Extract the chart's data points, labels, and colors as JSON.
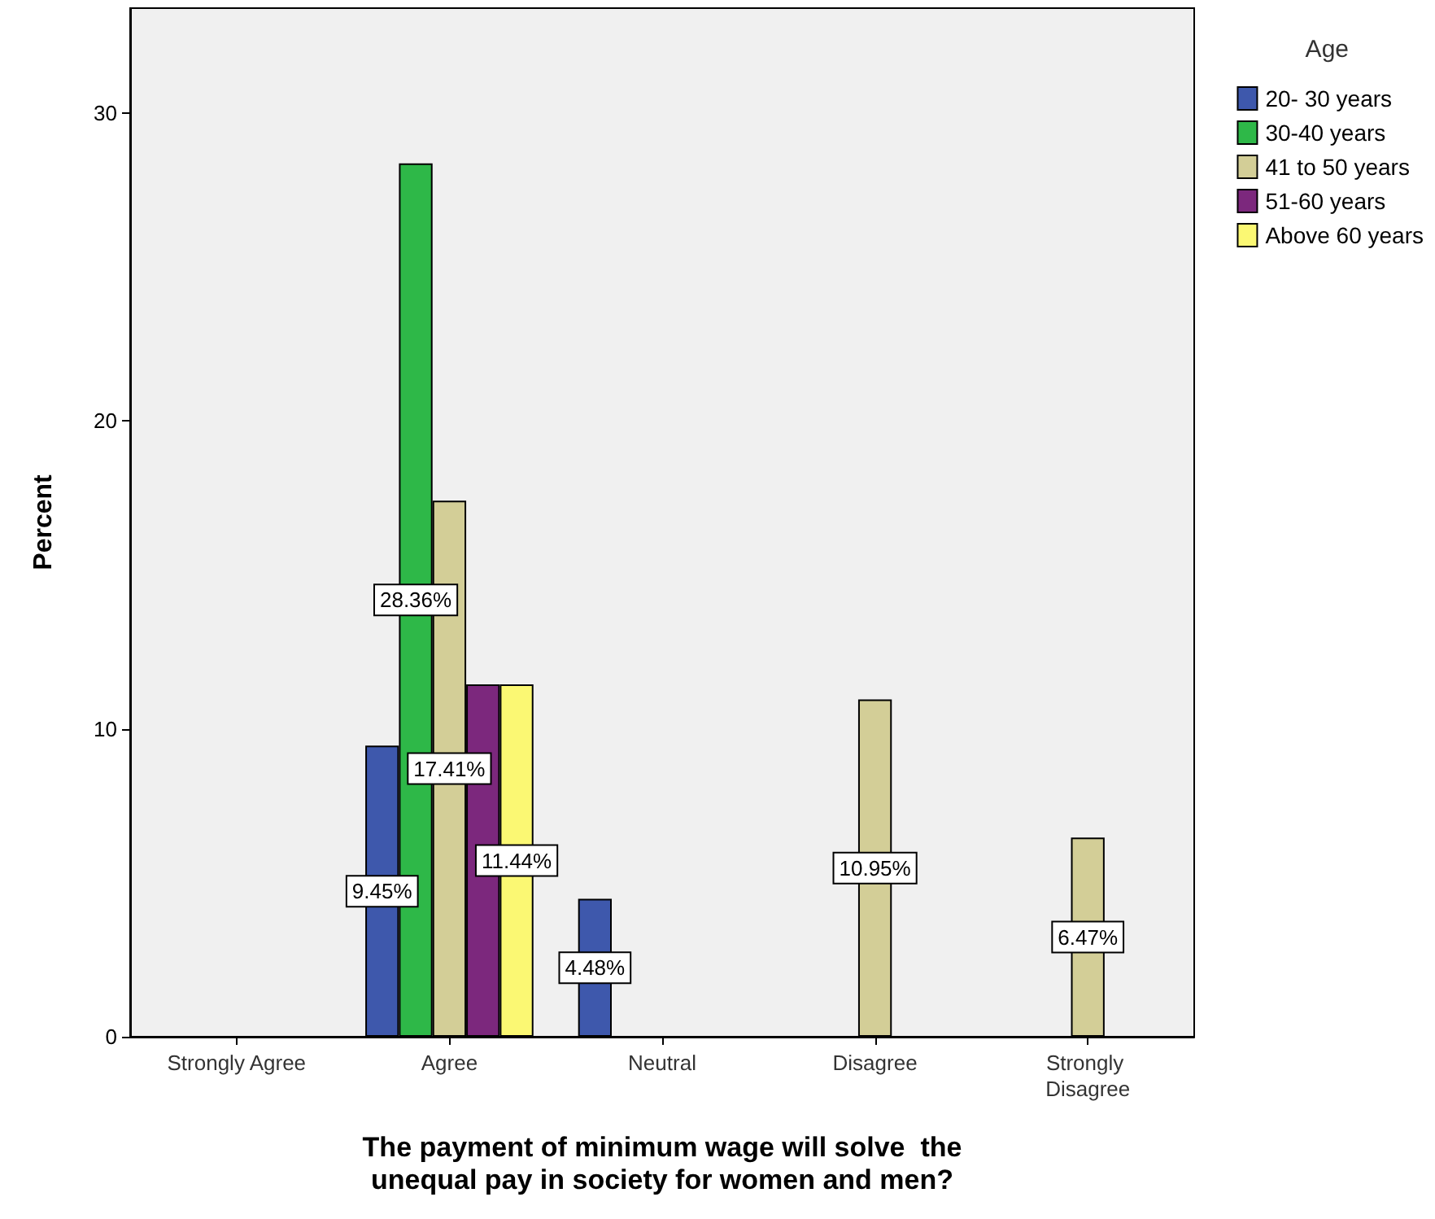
{
  "chart_data": {
    "type": "bar",
    "xlabel": "The payment of minimum wage will solve  the\nunequal pay in society for women and men?",
    "ylabel": "Percent",
    "legend_title": "Age",
    "categories": [
      "Strongly Agree",
      "Agree",
      "Neutral",
      "Disagree",
      "Strongly Disagree"
    ],
    "series": [
      {
        "name": "20- 30 years",
        "color": "#3e58ac",
        "values": [
          null,
          9.45,
          4.48,
          null,
          null
        ],
        "value_labels": [
          null,
          "9.45%",
          "4.48%",
          null,
          null
        ]
      },
      {
        "name": "30-40 years",
        "color": "#2eb848",
        "values": [
          null,
          28.36,
          null,
          null,
          null
        ],
        "value_labels": [
          null,
          "28.36%",
          null,
          null,
          null
        ]
      },
      {
        "name": "41 to 50 years",
        "color": "#d3ce97",
        "values": [
          null,
          17.41,
          null,
          10.95,
          6.47
        ],
        "value_labels": [
          null,
          "17.41%",
          null,
          "10.95%",
          "6.47%"
        ]
      },
      {
        "name": "51-60 years",
        "color": "#7c287d",
        "values": [
          null,
          11.44,
          null,
          null,
          null
        ],
        "value_labels": [
          null,
          null,
          null,
          null,
          null
        ]
      },
      {
        "name": "Above 60 years",
        "color": "#fbf873",
        "values": [
          null,
          11.44,
          null,
          null,
          null
        ],
        "value_labels": [
          null,
          "11.44%",
          null,
          null,
          null
        ]
      }
    ],
    "ylim": [
      0,
      33.4
    ],
    "yticks": [
      0,
      10,
      20,
      30
    ],
    "grid": false,
    "legend": "top right"
  }
}
